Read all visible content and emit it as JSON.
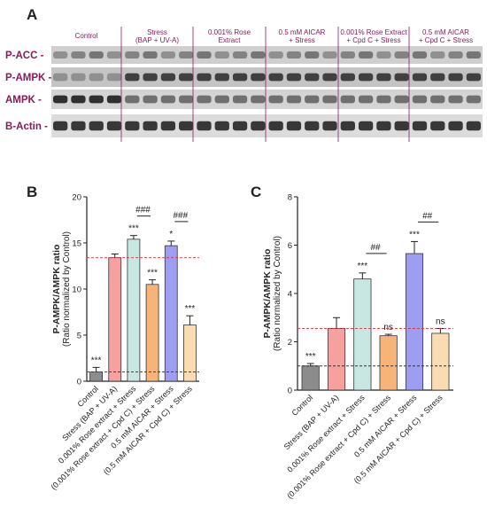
{
  "panel_letters": {
    "a": "A",
    "b": "B",
    "c": "C"
  },
  "blot": {
    "columns": [
      [
        "Control"
      ],
      [
        "Stress",
        "(BAP + UV-A)"
      ],
      [
        "0.001% Rose",
        "Extract"
      ],
      [
        "0.5 mM AICAR",
        "+ Stress"
      ],
      [
        "0.001% Rose Extract",
        "+ Cpd C + Stress"
      ],
      [
        "0.5 mM AICAR",
        "+ Cpd C + Stress"
      ]
    ],
    "rows": [
      "P-ACC -",
      "P-AMPK -",
      "AMPK -",
      "B-Actin -"
    ]
  },
  "chart_data": [
    {
      "type": "bar",
      "panel": "B",
      "ylabel": "P-AMPK/AMPK ratio",
      "ylabel_sub": "(Ratio normalized by Control)",
      "ylim": [
        0,
        20
      ],
      "yticks": [
        0,
        5,
        10,
        15,
        20
      ],
      "categories": [
        "Control",
        "Stress (BAP + UV-A)",
        "0.001% Rose extract + Stress",
        "(0.001% Rose extract + Cpd C) + Stress",
        "0.5 mM AICAR + Stress",
        "(0.5 mM AICAR + Cpd C) + Stress"
      ],
      "values": [
        1.0,
        13.4,
        15.4,
        10.5,
        14.7,
        6.1
      ],
      "errors": [
        0.5,
        0.4,
        0.4,
        0.5,
        0.5,
        1.0
      ],
      "significance": [
        "***",
        "",
        "***",
        "***",
        "*",
        "***"
      ],
      "brackets": [
        {
          "label": "###",
          "from": 2,
          "to": 3
        },
        {
          "label": "###",
          "from": 4,
          "to": 5
        }
      ],
      "reference_lines": [
        {
          "value": 13.4,
          "color": "#e03030"
        },
        {
          "value": 1.0,
          "color": "#333333"
        }
      ],
      "colors": [
        "#8c8c8c",
        "#f6a0a0",
        "#c8e6e2",
        "#f7b478",
        "#9d9df2",
        "#f9dcb2"
      ]
    },
    {
      "type": "bar",
      "panel": "C",
      "ylabel": "P-AMPK/AMPK ratio",
      "ylabel_sub": "(Ratio normalized by Control)",
      "ylim": [
        0,
        8
      ],
      "yticks": [
        0,
        2,
        4,
        6,
        8
      ],
      "categories": [
        "Control",
        "Stress (BAP + UV-A)",
        "0.001% Rose extract + Stress",
        "(0.001% Rose extract + Cpd C) + Stress",
        "0.5 mM AICAR + Stress",
        "(0.5 mM AICAR + Cpd C) + Stress"
      ],
      "values": [
        1.0,
        2.55,
        4.6,
        2.25,
        5.65,
        2.35
      ],
      "errors": [
        0.1,
        0.45,
        0.25,
        0.06,
        0.5,
        0.2
      ],
      "significance": [
        "***",
        "",
        "***",
        "ns",
        "***",
        "ns"
      ],
      "brackets": [
        {
          "label": "##",
          "from": 2,
          "to": 3
        },
        {
          "label": "##",
          "from": 4,
          "to": 5
        }
      ],
      "reference_lines": [
        {
          "value": 2.55,
          "color": "#e03030"
        },
        {
          "value": 1.0,
          "color": "#333333"
        }
      ],
      "colors": [
        "#8c8c8c",
        "#f6a0a0",
        "#c8e6e2",
        "#f7b478",
        "#9d9df2",
        "#f9dcb2"
      ]
    }
  ]
}
